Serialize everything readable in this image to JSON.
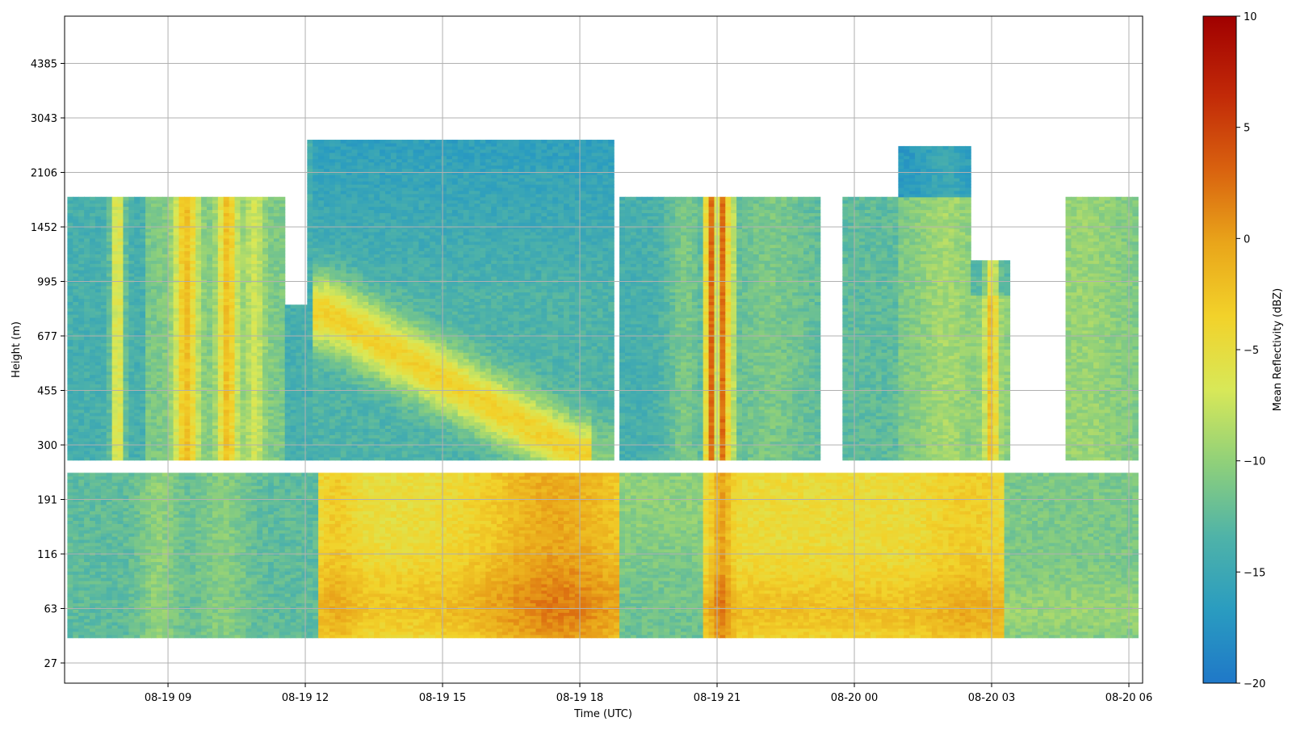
{
  "chart_data": {
    "type": "heatmap",
    "title": "",
    "xlabel": "Time (UTC)",
    "ylabel": "Height (m)",
    "x_ticks": [
      "08-19 09",
      "08-19 12",
      "08-19 15",
      "08-19 18",
      "08-19 21",
      "08-20 00",
      "08-20 03",
      "08-20 06"
    ],
    "x_tick_hours": [
      9,
      12,
      15,
      18,
      21,
      24,
      27,
      30
    ],
    "xlim_hours": [
      6.74,
      30.3
    ],
    "y_ticks": [
      27,
      63,
      116,
      191,
      300,
      455,
      677,
      995,
      1452,
      2106,
      3043,
      4385
    ],
    "grid": true,
    "colorbar": {
      "label": "Mean Reflectivity (dBZ)",
      "ticks": [
        -20,
        -15,
        -10,
        -5,
        0,
        5,
        10
      ],
      "range": [
        -20,
        10
      ],
      "colormap": [
        "#1f78c8",
        "#2a9cc0",
        "#4fb3a8",
        "#8fd07a",
        "#d8e858",
        "#f2d22a",
        "#e9a51a",
        "#d9620f",
        "#c22a08",
        "#a00000"
      ]
    },
    "gaps_height_m": [
      [
        236,
        264
      ]
    ],
    "column_tops_m": [
      {
        "t": [
          6.8,
          8.5
        ],
        "top": 1800
      },
      {
        "t": [
          8.5,
          11.5
        ],
        "top": 1800
      },
      {
        "t": [
          11.5,
          12.1
        ],
        "top": 850
      },
      {
        "t": [
          12.1,
          18.8
        ],
        "top": 2650
      },
      {
        "t": [
          18.9,
          21.0
        ],
        "top": 1800
      },
      {
        "t": [
          21.0,
          23.3
        ],
        "top": 1800
      },
      {
        "t": [
          23.8,
          25.0
        ],
        "top": 1800
      },
      {
        "t": [
          25.0,
          26.6
        ],
        "top": 2500
      },
      {
        "t": [
          26.6,
          27.4
        ],
        "top": 1160
      },
      {
        "t": [
          28.6,
          30.2
        ],
        "top": 1800
      }
    ],
    "features": [
      {
        "name": "morning-low-layer",
        "t": [
          6.8,
          12.3
        ],
        "h": [
          40,
          240
        ],
        "dbz": -11
      },
      {
        "name": "descending-layer",
        "t": [
          12.2,
          18.3
        ],
        "h": [
          300,
          700
        ],
        "dbz": -4
      },
      {
        "name": "afternoon-boundary-layer",
        "t": [
          12.3,
          18.8
        ],
        "h": [
          40,
          240
        ],
        "dbz": -2
      },
      {
        "name": "peak-afternoon-core",
        "t": [
          16.5,
          18.5
        ],
        "h": [
          40,
          150
        ],
        "dbz": 3
      },
      {
        "name": "evening-strip",
        "t": [
          20.7,
          21.3
        ],
        "h": [
          40,
          1800
        ],
        "dbz": 4
      },
      {
        "name": "night-boundary-layer",
        "t": [
          21.0,
          27.3
        ],
        "h": [
          40,
          240
        ],
        "dbz": -3
      },
      {
        "name": "night-surface-core",
        "t": [
          21.0,
          27.0
        ],
        "h": [
          45,
          70
        ],
        "dbz": 2
      }
    ]
  }
}
